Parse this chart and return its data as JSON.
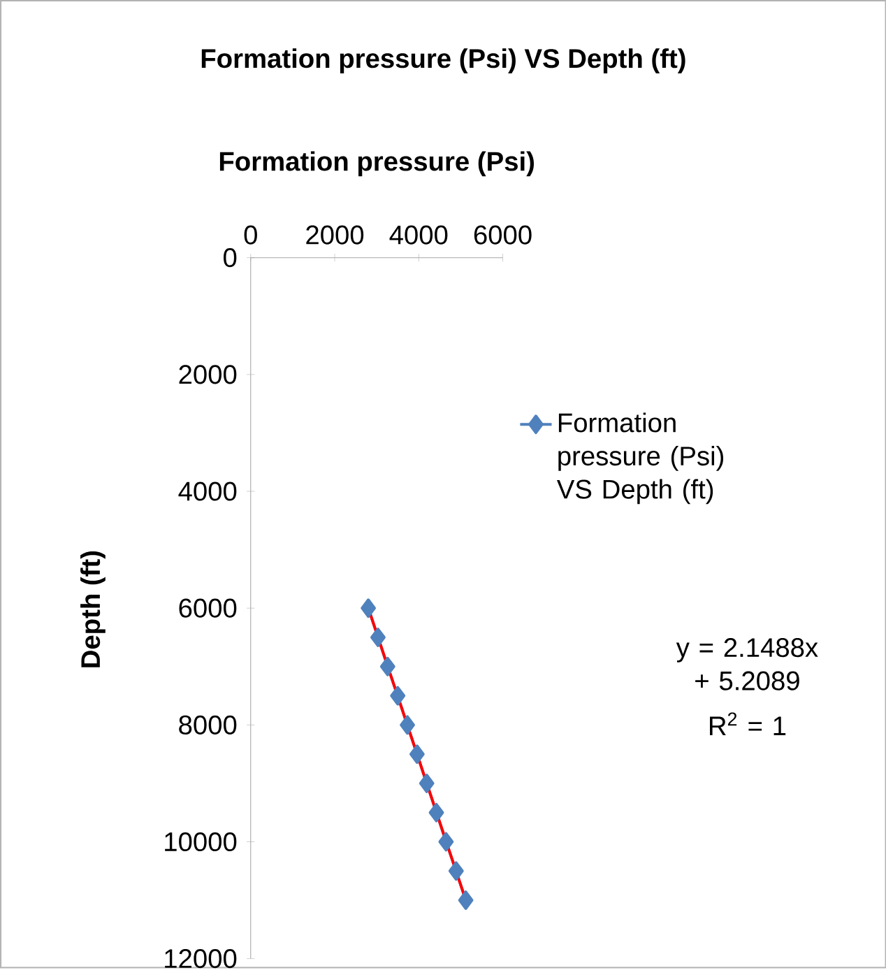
{
  "chart_data": {
    "type": "line",
    "title": "Formation pressure (Psi) VS Depth (ft)",
    "xlabel": "Formation pressure (Psi)",
    "ylabel": "Depth (ft)",
    "xlim": [
      0,
      6000
    ],
    "xticks": [
      0,
      2000,
      4000,
      6000
    ],
    "ylim": [
      12000,
      0
    ],
    "yticks": [
      0,
      2000,
      4000,
      6000,
      8000,
      10000,
      12000
    ],
    "legend": "right",
    "marker": "diamond",
    "series": [
      {
        "name": "Formation pressure (Psi) VS Depth (ft)",
        "color": "#4f81bd",
        "x": [
          2800,
          3030,
          3260,
          3500,
          3730,
          3960,
          4190,
          4420,
          4650,
          4890,
          5120
        ],
        "values": [
          6000,
          6500,
          7000,
          7500,
          8000,
          8500,
          9000,
          9500,
          10000,
          10500,
          11000
        ]
      },
      {
        "color": "#ff0000",
        "marker": "none",
        "x": [
          2800,
          5120
        ],
        "values": [
          6000,
          11000
        ]
      }
    ],
    "annotations": [
      "y = 2.1488x + 5.2089",
      "R$^{2}$ = 1"
    ]
  }
}
